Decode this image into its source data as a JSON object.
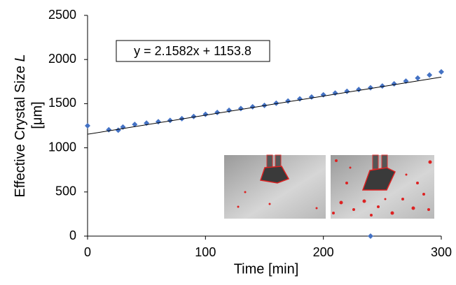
{
  "chart_data": {
    "type": "scatter",
    "xlabel": "Time [min]",
    "ylabel": {
      "text": "Effective Crystal Size",
      "variable": "L",
      "unit": "[μm]"
    },
    "annotation": "y = 2.1582x + 1153.8",
    "trendline": {
      "slope": 2.1582,
      "intercept": 1153.8,
      "color": "#000000"
    },
    "xlim": [
      0,
      300
    ],
    "xticks": [
      0,
      100,
      200,
      300
    ],
    "ylim": [
      0,
      2500
    ],
    "yticks": [
      0,
      500,
      1000,
      1500,
      2000,
      2500
    ],
    "grid": false,
    "color": "#4472c4",
    "x": [
      0,
      18,
      26,
      30,
      40,
      50,
      60,
      70,
      80,
      90,
      100,
      110,
      120,
      130,
      140,
      150,
      160,
      170,
      180,
      190,
      200,
      210,
      220,
      230,
      240,
      240,
      250,
      260,
      270,
      280,
      290,
      300
    ],
    "values": [
      1250,
      1205,
      1200,
      1235,
      1265,
      1280,
      1295,
      1310,
      1330,
      1355,
      1380,
      1400,
      1425,
      1445,
      1465,
      1480,
      1505,
      1530,
      1555,
      1575,
      1600,
      1620,
      1640,
      1660,
      1680,
      0,
      1700,
      1725,
      1755,
      1790,
      1825,
      1860
    ]
  }
}
